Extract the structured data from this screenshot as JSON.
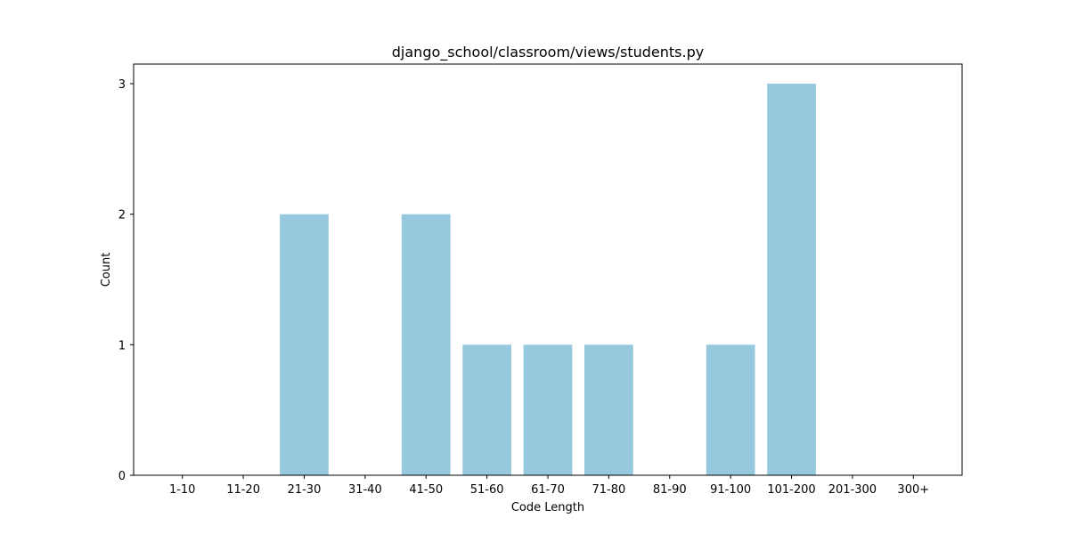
{
  "chart_data": {
    "type": "bar",
    "title": "django_school/classroom/views/students.py",
    "xlabel": "Code Length",
    "ylabel": "Count",
    "categories": [
      "1-10",
      "11-20",
      "21-30",
      "31-40",
      "41-50",
      "51-60",
      "61-70",
      "71-80",
      "81-90",
      "91-100",
      "101-200",
      "201-300",
      "300+"
    ],
    "values": [
      0,
      0,
      2,
      0,
      2,
      1,
      1,
      1,
      0,
      1,
      3,
      0,
      0
    ],
    "ylim": [
      0,
      3.15
    ],
    "yticks": [
      0,
      1,
      2,
      3
    ],
    "grid": false,
    "bar_color": "#96c9dd"
  }
}
